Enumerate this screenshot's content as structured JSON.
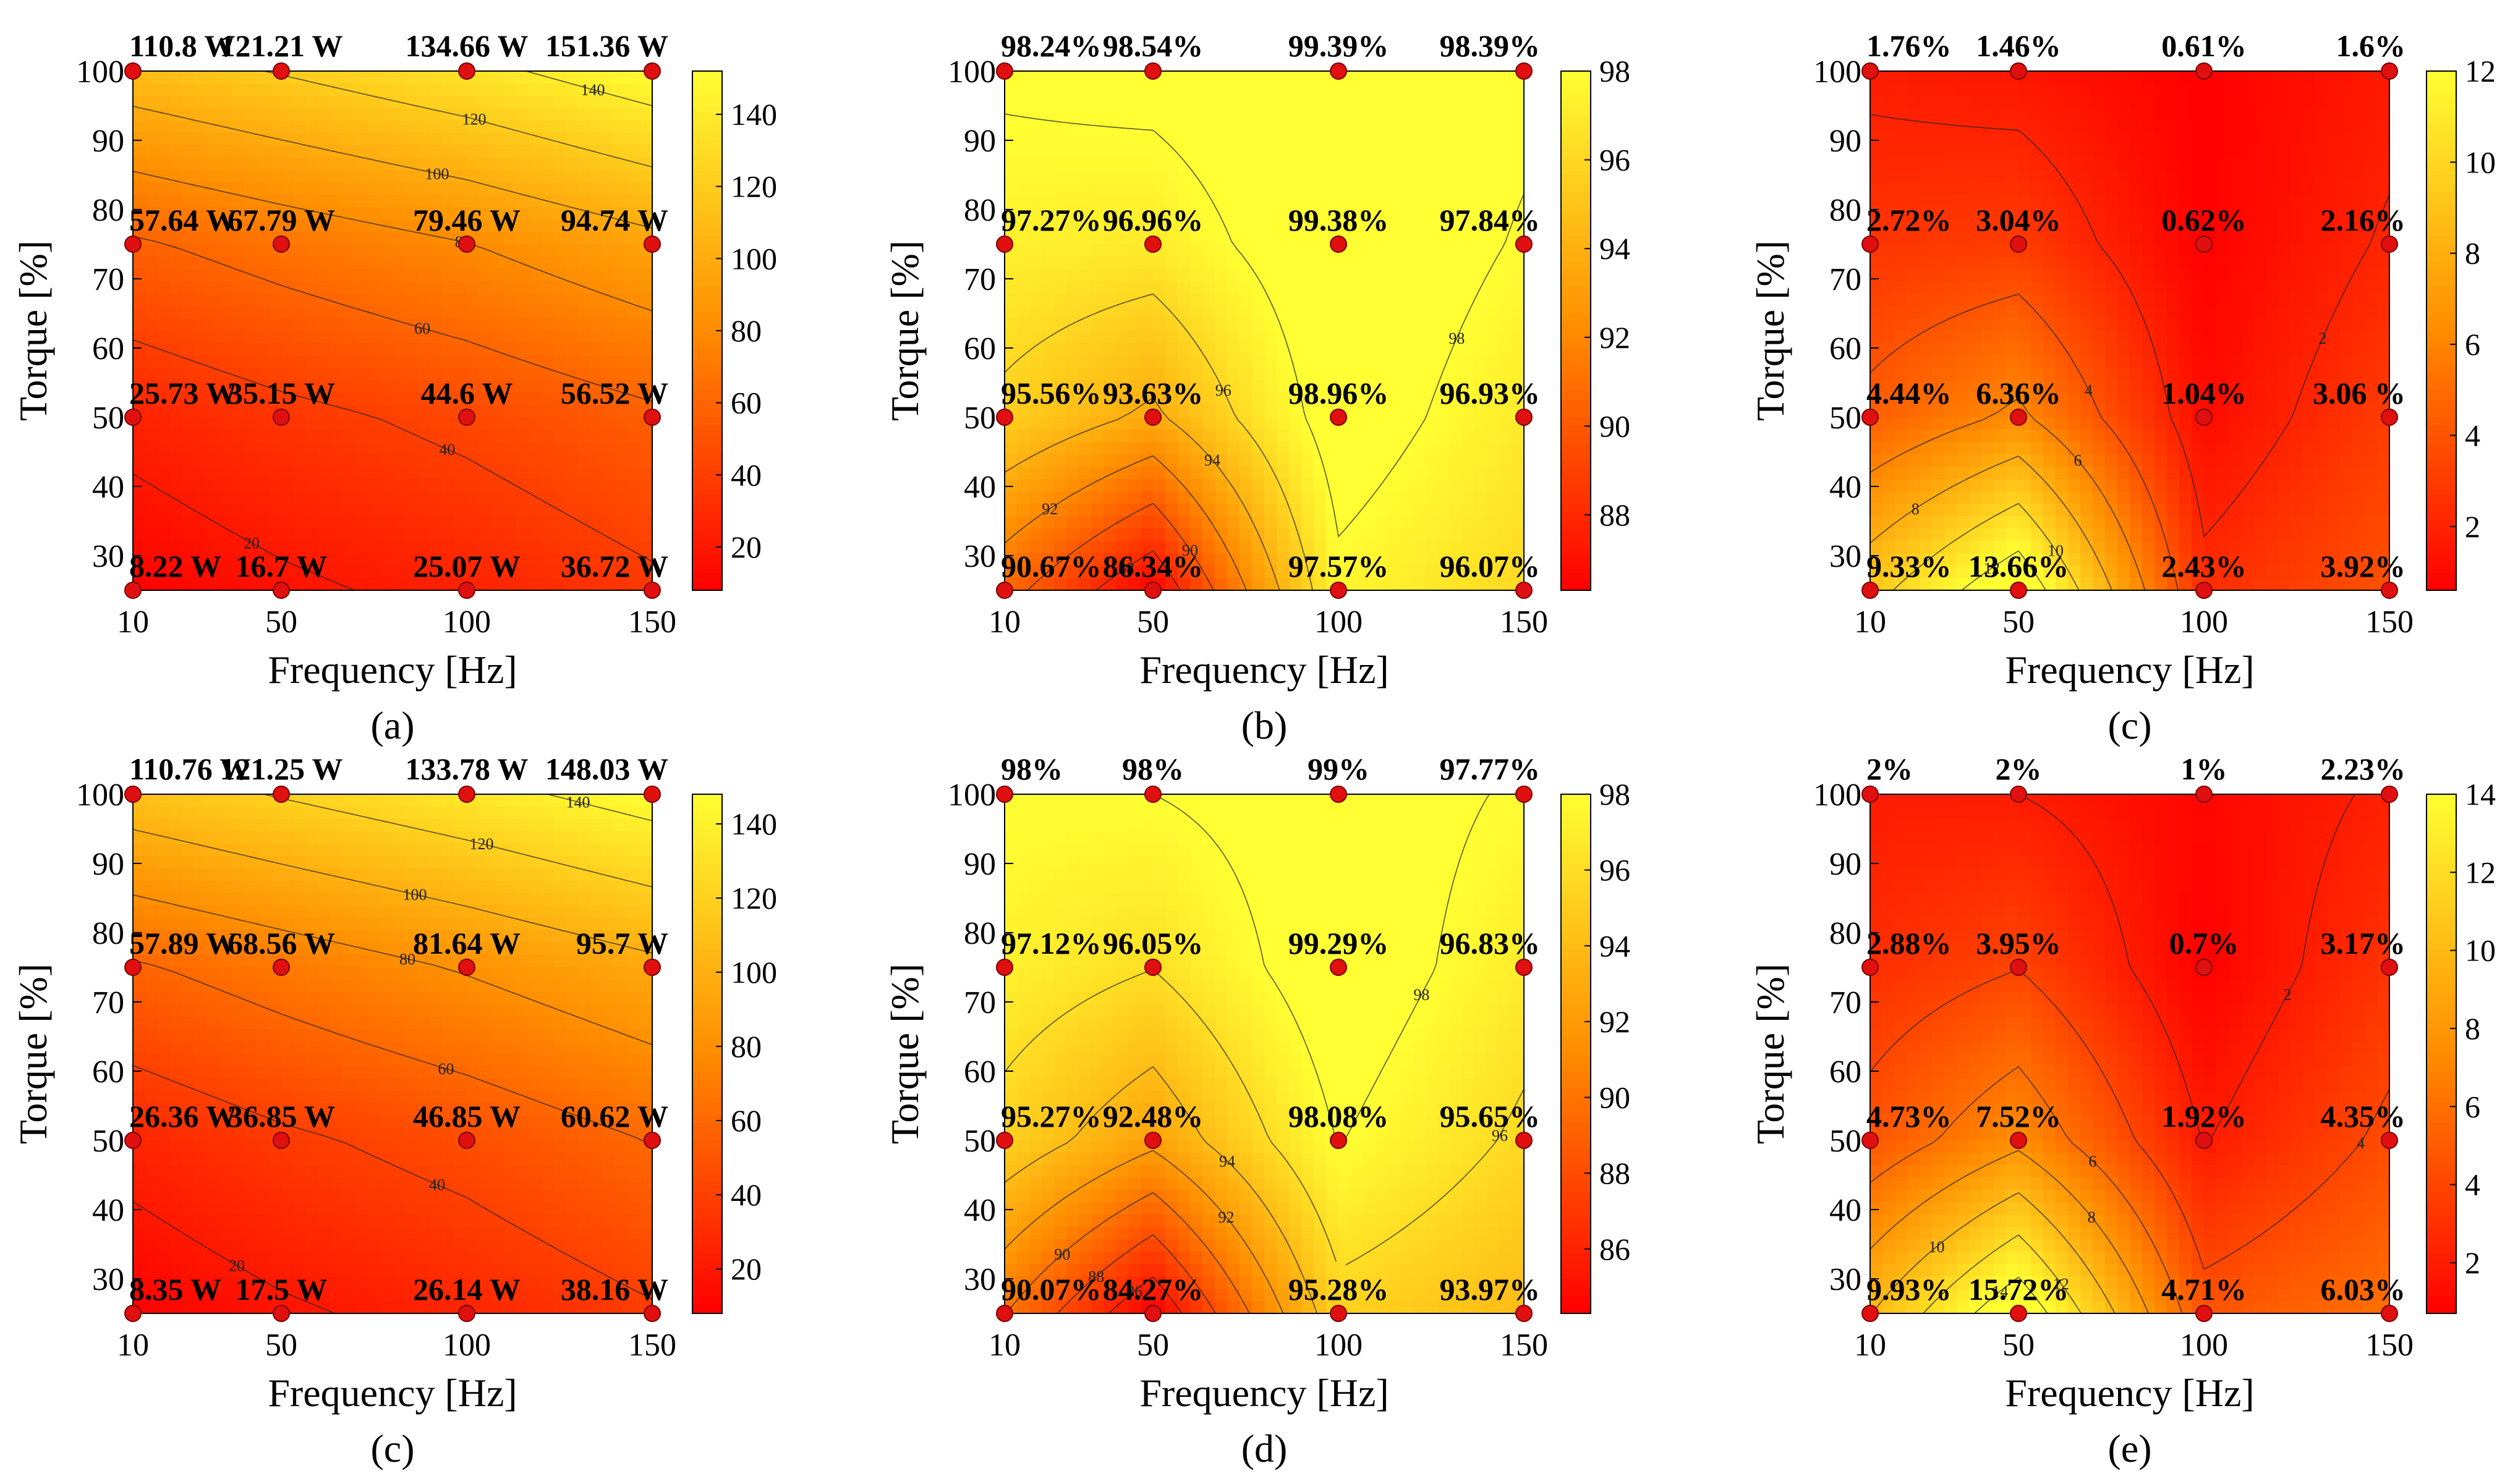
{
  "colors": {
    "low": "#ff0000",
    "mid": "#ff8c00",
    "high": "#ffff33",
    "point": "#e01010",
    "point_edge": "#7a0000"
  },
  "chart_data": [
    {
      "type": "heatmap",
      "caption": "(a)",
      "xlabel": "Frequency [Hz]",
      "ylabel": "Torque [%]",
      "x": [
        10,
        50,
        100,
        150
      ],
      "y": [
        25,
        50,
        75,
        100
      ],
      "xlim": [
        10,
        150
      ],
      "ylim": [
        25,
        100
      ],
      "xticks": [
        10,
        50,
        100,
        150
      ],
      "yticks": [
        30,
        40,
        50,
        60,
        70,
        80,
        90,
        100
      ],
      "colorbar": {
        "min": 8,
        "max": 152,
        "ticks": [
          20,
          40,
          60,
          80,
          100,
          120,
          140
        ]
      },
      "contour_levels": [
        20,
        40,
        60,
        80,
        100,
        120,
        140
      ],
      "values": [
        [
          8.22,
          16.7,
          25.07,
          36.72
        ],
        [
          25.73,
          35.15,
          44.6,
          56.52
        ],
        [
          57.64,
          67.79,
          79.46,
          94.74
        ],
        [
          110.8,
          121.21,
          134.66,
          151.36
        ]
      ],
      "labels": [
        [
          "8.22 W",
          "16.7 W",
          "25.07 W",
          "36.72 W"
        ],
        [
          "25.73 W",
          "35.15 W",
          "44.6 W",
          "56.52 W"
        ],
        [
          "57.64 W",
          "67.79 W",
          "79.46 W",
          "94.74 W"
        ],
        [
          "110.8 W",
          "121.21 W",
          "134.66 W",
          "151.36 W"
        ]
      ]
    },
    {
      "type": "heatmap",
      "caption": "(b)",
      "xlabel": "Frequency [Hz]",
      "ylabel": "Torque [%]",
      "x": [
        10,
        50,
        100,
        150
      ],
      "y": [
        25,
        50,
        75,
        100
      ],
      "xlim": [
        10,
        150
      ],
      "ylim": [
        25,
        100
      ],
      "xticks": [
        10,
        50,
        100,
        150
      ],
      "yticks": [
        30,
        40,
        50,
        60,
        70,
        80,
        90,
        100
      ],
      "colorbar": {
        "min": 86.3,
        "max": 98,
        "ticks": [
          88,
          90,
          92,
          94,
          96,
          98
        ]
      },
      "contour_levels": [
        88,
        90,
        92,
        94,
        96,
        98
      ],
      "values": [
        [
          90.67,
          86.34,
          97.57,
          96.07
        ],
        [
          95.56,
          93.63,
          98.96,
          96.93
        ],
        [
          97.27,
          96.96,
          99.38,
          97.84
        ],
        [
          98.24,
          98.54,
          99.39,
          98.39
        ]
      ],
      "labels": [
        [
          "90.67%",
          "86.34%",
          "97.57%",
          "96.07%"
        ],
        [
          "95.56%",
          "93.63%",
          "98.96%",
          "96.93%"
        ],
        [
          "97.27%",
          "96.96%",
          "99.38%",
          "97.84%"
        ],
        [
          "98.24%",
          "98.54%",
          "99.39%",
          "98.39%"
        ]
      ]
    },
    {
      "type": "heatmap",
      "caption": "(c)",
      "xlabel": "Frequency [Hz]",
      "ylabel": "Torque [%]",
      "x": [
        10,
        50,
        100,
        150
      ],
      "y": [
        25,
        50,
        75,
        100
      ],
      "xlim": [
        10,
        150
      ],
      "ylim": [
        25,
        100
      ],
      "xticks": [
        10,
        50,
        100,
        150
      ],
      "yticks": [
        30,
        40,
        50,
        60,
        70,
        80,
        90,
        100
      ],
      "colorbar": {
        "min": 0.6,
        "max": 12,
        "ticks": [
          2,
          4,
          6,
          8,
          10,
          12
        ]
      },
      "contour_levels": [
        2,
        4,
        6,
        8,
        10,
        12
      ],
      "values": [
        [
          9.33,
          13.66,
          2.43,
          3.92
        ],
        [
          4.44,
          6.36,
          1.04,
          3.06
        ],
        [
          2.72,
          3.04,
          0.62,
          2.16
        ],
        [
          1.76,
          1.46,
          0.61,
          1.6
        ]
      ],
      "labels": [
        [
          "9.33%",
          "13.66%",
          "2.43%",
          "3.92%"
        ],
        [
          "4.44%",
          "6.36%",
          "1.04%",
          "3.06 %"
        ],
        [
          "2.72%",
          "3.04%",
          "0.62%",
          "2.16%"
        ],
        [
          "1.76%",
          "1.46%",
          "0.61%",
          "1.6%"
        ]
      ]
    },
    {
      "type": "heatmap",
      "caption": "(c)",
      "xlabel": "Frequency [Hz]",
      "ylabel": "Torque [%]",
      "x": [
        10,
        50,
        100,
        150
      ],
      "y": [
        25,
        50,
        75,
        100
      ],
      "xlim": [
        10,
        150
      ],
      "ylim": [
        25,
        100
      ],
      "xticks": [
        10,
        50,
        100,
        150
      ],
      "yticks": [
        30,
        40,
        50,
        60,
        70,
        80,
        90,
        100
      ],
      "colorbar": {
        "min": 8,
        "max": 148,
        "ticks": [
          20,
          40,
          60,
          80,
          100,
          120,
          140
        ]
      },
      "contour_levels": [
        20,
        40,
        60,
        80,
        100,
        120,
        140
      ],
      "values": [
        [
          8.35,
          17.5,
          26.14,
          38.16
        ],
        [
          26.36,
          36.85,
          46.85,
          60.62
        ],
        [
          57.89,
          68.56,
          81.64,
          95.7
        ],
        [
          110.76,
          121.25,
          133.78,
          148.03
        ]
      ],
      "labels": [
        [
          "8.35 W",
          "17.5 W",
          "26.14 W",
          "38.16 W"
        ],
        [
          "26.36 W",
          "36.85 W",
          "46.85 W",
          "60.62 W"
        ],
        [
          "57.89 W",
          "68.56 W",
          "81.64 W",
          "95.7 W"
        ],
        [
          "110.76 W",
          "121.25 W",
          "133.78 W",
          "148.03 W"
        ]
      ]
    },
    {
      "type": "heatmap",
      "caption": "(d)",
      "xlabel": "Frequency [Hz]",
      "ylabel": "Torque [%]",
      "x": [
        10,
        50,
        100,
        150
      ],
      "y": [
        25,
        50,
        75,
        100
      ],
      "xlim": [
        10,
        150
      ],
      "ylim": [
        25,
        100
      ],
      "xticks": [
        10,
        50,
        100,
        150
      ],
      "yticks": [
        30,
        40,
        50,
        60,
        70,
        80,
        90,
        100
      ],
      "colorbar": {
        "min": 84.3,
        "max": 98,
        "ticks": [
          86,
          88,
          90,
          92,
          94,
          96,
          98
        ]
      },
      "contour_levels": [
        86,
        88,
        90,
        92,
        94,
        96,
        98
      ],
      "values": [
        [
          90.07,
          84.27,
          95.28,
          93.97
        ],
        [
          95.27,
          92.48,
          98.08,
          95.65
        ],
        [
          97.12,
          96.05,
          99.29,
          96.83
        ],
        [
          98,
          98,
          99,
          97.77
        ]
      ],
      "labels": [
        [
          "90.07%",
          "84.27%",
          "95.28%",
          "93.97%"
        ],
        [
          "95.27%",
          "92.48%",
          "98.08%",
          "95.65%"
        ],
        [
          "97.12%",
          "96.05%",
          "99.29%",
          "96.83%"
        ],
        [
          "98%",
          "98%",
          "99%",
          "97.77%"
        ]
      ]
    },
    {
      "type": "heatmap",
      "caption": "(e)",
      "xlabel": "Frequency [Hz]",
      "ylabel": "Torque [%]",
      "x": [
        10,
        50,
        100,
        150
      ],
      "y": [
        25,
        50,
        75,
        100
      ],
      "xlim": [
        10,
        150
      ],
      "ylim": [
        25,
        100
      ],
      "xticks": [
        10,
        50,
        100,
        150
      ],
      "yticks": [
        30,
        40,
        50,
        60,
        70,
        80,
        90,
        100
      ],
      "colorbar": {
        "min": 0.7,
        "max": 14,
        "ticks": [
          2,
          4,
          6,
          8,
          10,
          12,
          14
        ]
      },
      "contour_levels": [
        2,
        4,
        6,
        8,
        10,
        12,
        14
      ],
      "values": [
        [
          9.93,
          15.72,
          4.71,
          6.03
        ],
        [
          4.73,
          7.52,
          1.92,
          4.35
        ],
        [
          2.88,
          3.95,
          0.7,
          3.17
        ],
        [
          2,
          2,
          1,
          2.23
        ]
      ],
      "labels": [
        [
          "9.93%",
          "15.72%",
          "4.71%",
          "6.03%"
        ],
        [
          "4.73%",
          "7.52%",
          "1.92%",
          "4.35%"
        ],
        [
          "2.88%",
          "3.95%",
          "0.7%",
          "3.17%"
        ],
        [
          "2%",
          "2%",
          "1%",
          "2.23%"
        ]
      ]
    }
  ]
}
